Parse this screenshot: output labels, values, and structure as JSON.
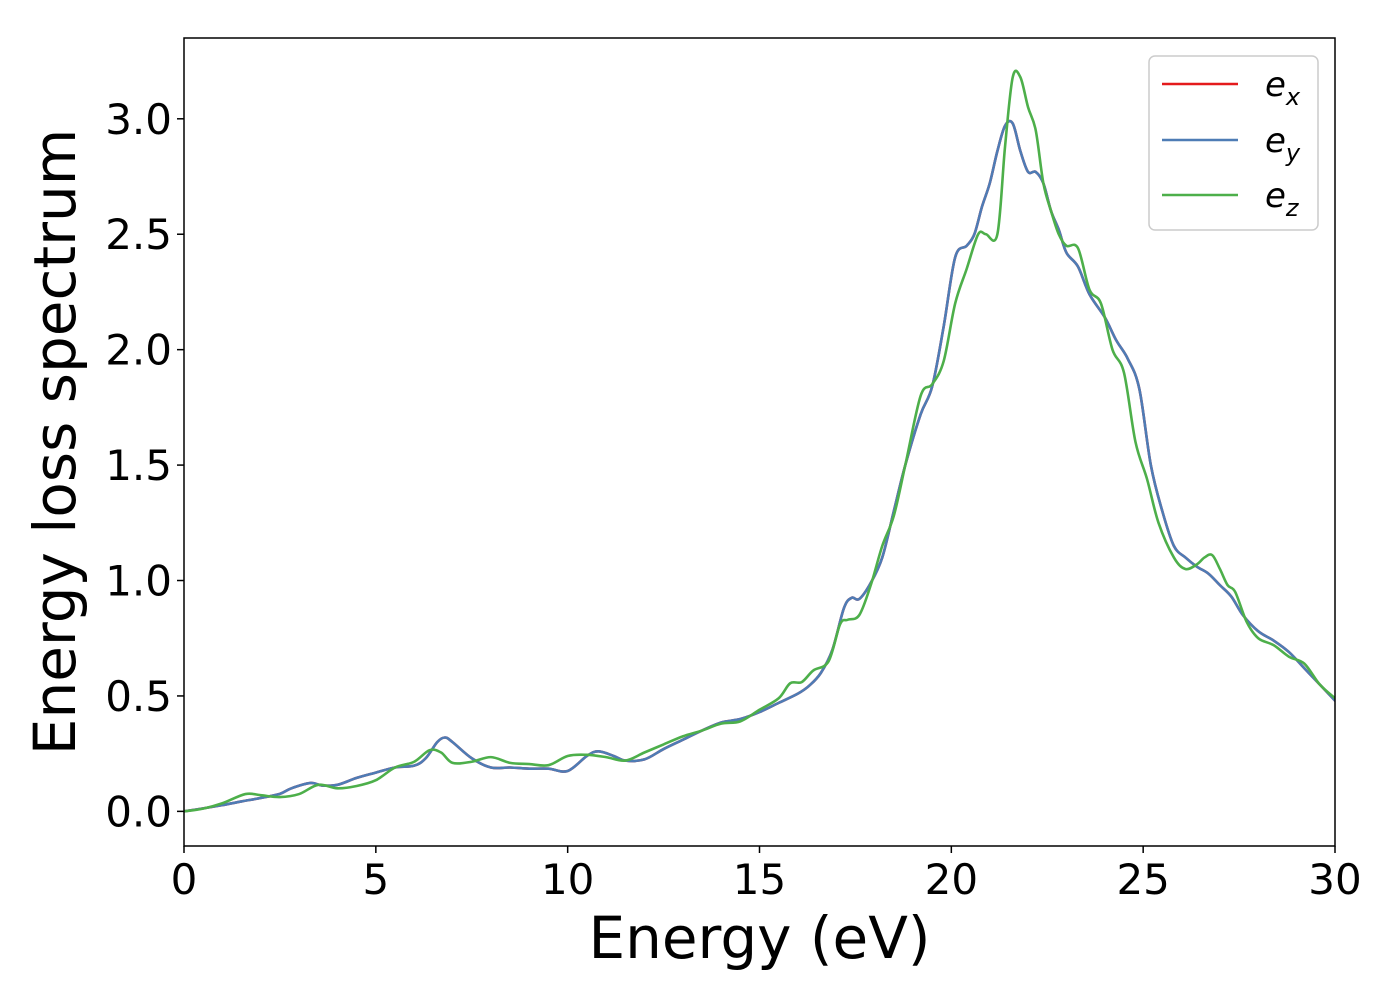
{
  "chart_data": {
    "type": "line",
    "title": "",
    "xlabel": "Energy (eV)",
    "ylabel": "Energy loss spectrum",
    "xlim": [
      0,
      30
    ],
    "ylim": [
      -0.15,
      3.35
    ],
    "xticks": [
      0,
      5,
      10,
      15,
      20,
      25,
      30
    ],
    "xtick_labels": [
      "0",
      "5",
      "10",
      "15",
      "20",
      "25",
      "30"
    ],
    "yticks": [
      0.0,
      0.5,
      1.0,
      1.5,
      2.0,
      2.5,
      3.0
    ],
    "ytick_labels": [
      "0.0",
      "0.5",
      "1.0",
      "1.5",
      "2.0",
      "2.5",
      "3.0"
    ],
    "grid": false,
    "legend_position": "top-right",
    "series": [
      {
        "name": "e_x",
        "legend_base": "e",
        "legend_sub": "x",
        "color": "#e41a1c",
        "x": [
          0,
          0.5,
          1,
          1.5,
          2,
          2.5,
          2.8,
          3.3,
          3.6,
          4,
          4.5,
          5,
          5.5,
          6,
          6.3,
          6.6,
          6.8,
          7.0,
          7.5,
          8,
          8.5,
          9,
          9.5,
          10,
          10.5,
          10.8,
          11.2,
          11.5,
          12,
          12.5,
          13,
          13.5,
          14,
          14.5,
          15,
          15.5,
          16,
          16.3,
          16.6,
          16.9,
          17.2,
          17.4,
          17.6,
          17.9,
          18.2,
          18.5,
          18.8,
          19.2,
          19.5,
          19.8,
          20.1,
          20.4,
          20.6,
          20.8,
          21.0,
          21.2,
          21.4,
          21.6,
          21.8,
          22.0,
          22.2,
          22.4,
          22.6,
          22.8,
          23.0,
          23.3,
          23.6,
          24.0,
          24.3,
          24.6,
          24.9,
          25.2,
          25.5,
          25.8,
          26.1,
          26.4,
          26.7,
          27.0,
          27.3,
          27.6,
          28.0,
          28.4,
          28.8,
          29.2,
          29.6,
          30.0
        ],
        "values": [
          0,
          0.013,
          0.027,
          0.043,
          0.058,
          0.076,
          0.1,
          0.123,
          0.112,
          0.115,
          0.145,
          0.168,
          0.19,
          0.198,
          0.23,
          0.3,
          0.32,
          0.3,
          0.23,
          0.19,
          0.19,
          0.185,
          0.185,
          0.175,
          0.24,
          0.26,
          0.24,
          0.22,
          0.225,
          0.27,
          0.31,
          0.35,
          0.385,
          0.4,
          0.43,
          0.47,
          0.51,
          0.545,
          0.6,
          0.7,
          0.88,
          0.925,
          0.92,
          0.99,
          1.1,
          1.3,
          1.5,
          1.72,
          1.84,
          2.1,
          2.4,
          2.45,
          2.5,
          2.62,
          2.72,
          2.86,
          2.97,
          2.98,
          2.86,
          2.77,
          2.77,
          2.72,
          2.6,
          2.52,
          2.42,
          2.36,
          2.24,
          2.14,
          2.04,
          1.96,
          1.83,
          1.5,
          1.3,
          1.15,
          1.1,
          1.06,
          1.03,
          0.98,
          0.93,
          0.85,
          0.78,
          0.74,
          0.69,
          0.62,
          0.55,
          0.48
        ]
      },
      {
        "name": "e_y",
        "legend_base": "e",
        "legend_sub": "y",
        "color": "#4e7cb5",
        "x": [
          0,
          0.5,
          1,
          1.5,
          2,
          2.5,
          2.8,
          3.3,
          3.6,
          4,
          4.5,
          5,
          5.5,
          6,
          6.3,
          6.6,
          6.8,
          7.0,
          7.5,
          8,
          8.5,
          9,
          9.5,
          10,
          10.5,
          10.8,
          11.2,
          11.5,
          12,
          12.5,
          13,
          13.5,
          14,
          14.5,
          15,
          15.5,
          16,
          16.3,
          16.6,
          16.9,
          17.2,
          17.4,
          17.6,
          17.9,
          18.2,
          18.5,
          18.8,
          19.2,
          19.5,
          19.8,
          20.1,
          20.4,
          20.6,
          20.8,
          21.0,
          21.2,
          21.4,
          21.6,
          21.8,
          22.0,
          22.2,
          22.4,
          22.6,
          22.8,
          23.0,
          23.3,
          23.6,
          24.0,
          24.3,
          24.6,
          24.9,
          25.2,
          25.5,
          25.8,
          26.1,
          26.4,
          26.7,
          27.0,
          27.3,
          27.6,
          28.0,
          28.4,
          28.8,
          29.2,
          29.6,
          30.0
        ],
        "values": [
          0,
          0.013,
          0.027,
          0.043,
          0.058,
          0.076,
          0.1,
          0.123,
          0.112,
          0.115,
          0.145,
          0.168,
          0.19,
          0.198,
          0.23,
          0.3,
          0.32,
          0.3,
          0.23,
          0.19,
          0.19,
          0.185,
          0.185,
          0.175,
          0.24,
          0.26,
          0.24,
          0.22,
          0.225,
          0.27,
          0.31,
          0.35,
          0.385,
          0.4,
          0.43,
          0.47,
          0.51,
          0.545,
          0.6,
          0.7,
          0.88,
          0.925,
          0.92,
          0.99,
          1.1,
          1.3,
          1.5,
          1.72,
          1.84,
          2.1,
          2.4,
          2.45,
          2.5,
          2.62,
          2.72,
          2.86,
          2.97,
          2.98,
          2.86,
          2.77,
          2.77,
          2.72,
          2.6,
          2.52,
          2.42,
          2.36,
          2.24,
          2.14,
          2.04,
          1.96,
          1.83,
          1.5,
          1.3,
          1.15,
          1.1,
          1.06,
          1.03,
          0.98,
          0.93,
          0.85,
          0.78,
          0.74,
          0.69,
          0.62,
          0.55,
          0.48
        ]
      },
      {
        "name": "e_z",
        "legend_base": "e",
        "legend_sub": "z",
        "color": "#4daf4a",
        "x": [
          0,
          0.5,
          1,
          1.6,
          2,
          2.5,
          3,
          3.5,
          4,
          4.5,
          5,
          5.5,
          6,
          6.4,
          6.7,
          7.0,
          7.5,
          8,
          8.5,
          9,
          9.5,
          10,
          10.5,
          11,
          11.5,
          12,
          12.5,
          13,
          13.5,
          14,
          14.5,
          15,
          15.5,
          15.8,
          16.1,
          16.4,
          16.8,
          17.1,
          17.3,
          17.6,
          17.9,
          18.2,
          18.5,
          18.8,
          19.2,
          19.5,
          19.8,
          20.1,
          20.4,
          20.7,
          20.9,
          21.2,
          21.4,
          21.6,
          21.8,
          22.0,
          22.2,
          22.4,
          22.6,
          22.8,
          23.0,
          23.3,
          23.6,
          23.9,
          24.2,
          24.5,
          24.8,
          25.1,
          25.4,
          25.8,
          26.1,
          26.4,
          26.6,
          26.8,
          27.0,
          27.2,
          27.4,
          27.7,
          28.0,
          28.4,
          28.8,
          29.2,
          29.6,
          30.0
        ],
        "values": [
          0,
          0.012,
          0.035,
          0.075,
          0.07,
          0.062,
          0.075,
          0.115,
          0.1,
          0.11,
          0.135,
          0.19,
          0.215,
          0.265,
          0.255,
          0.21,
          0.215,
          0.235,
          0.21,
          0.205,
          0.2,
          0.24,
          0.245,
          0.235,
          0.22,
          0.255,
          0.29,
          0.325,
          0.35,
          0.38,
          0.39,
          0.44,
          0.49,
          0.555,
          0.56,
          0.61,
          0.65,
          0.81,
          0.83,
          0.85,
          0.98,
          1.15,
          1.28,
          1.5,
          1.8,
          1.85,
          1.95,
          2.2,
          2.35,
          2.5,
          2.5,
          2.5,
          2.88,
          3.18,
          3.18,
          3.05,
          2.95,
          2.72,
          2.6,
          2.5,
          2.45,
          2.44,
          2.26,
          2.2,
          2.0,
          1.9,
          1.6,
          1.44,
          1.25,
          1.1,
          1.05,
          1.07,
          1.1,
          1.11,
          1.05,
          0.98,
          0.95,
          0.82,
          0.75,
          0.72,
          0.67,
          0.64,
          0.55,
          0.49
        ]
      }
    ]
  }
}
